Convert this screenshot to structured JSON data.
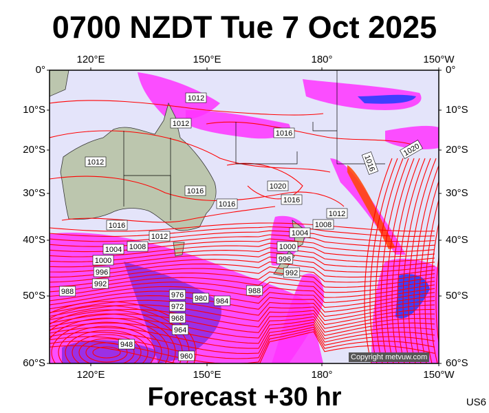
{
  "title": "0700 NZDT Tue 7 Oct 2025",
  "subtitle": "Forecast +30 hr",
  "chart_code": "US6",
  "copyright": "Copyright metvuw.com",
  "map": {
    "type": "mean sea level pressure isobars (hPa) with precipitation shading",
    "projection": "mercator",
    "lon_range": [
      "110°E",
      "150°W"
    ],
    "lat_range": [
      "0°",
      "60°S"
    ],
    "lon_ticks": [
      "120°E",
      "150°E",
      "180°",
      "150°W"
    ],
    "lat_ticks": [
      "0°",
      "10°S",
      "20°S",
      "30°S",
      "40°S",
      "50°S",
      "60°S"
    ],
    "colors": {
      "ocean": "#e4e4fa",
      "land": "#bcc6ae",
      "isobar": "#ff0000",
      "rain_light": "#ff33ff",
      "rain_mid": "#8a2be2",
      "rain_heavy": "#1e3cff",
      "rain_extreme": "#ff4500"
    },
    "isobar_labels": [
      "1012",
      "1012",
      "1016",
      "1012",
      "1016",
      "1016",
      "1016",
      "1020",
      "1020",
      "1016",
      "1012",
      "1008",
      "1004",
      "1000",
      "996",
      "992",
      "1016",
      "1012",
      "1008",
      "1004",
      "1000",
      "996",
      "992",
      "988",
      "976",
      "980",
      "984",
      "988",
      "972",
      "968",
      "964",
      "948",
      "960"
    ]
  }
}
